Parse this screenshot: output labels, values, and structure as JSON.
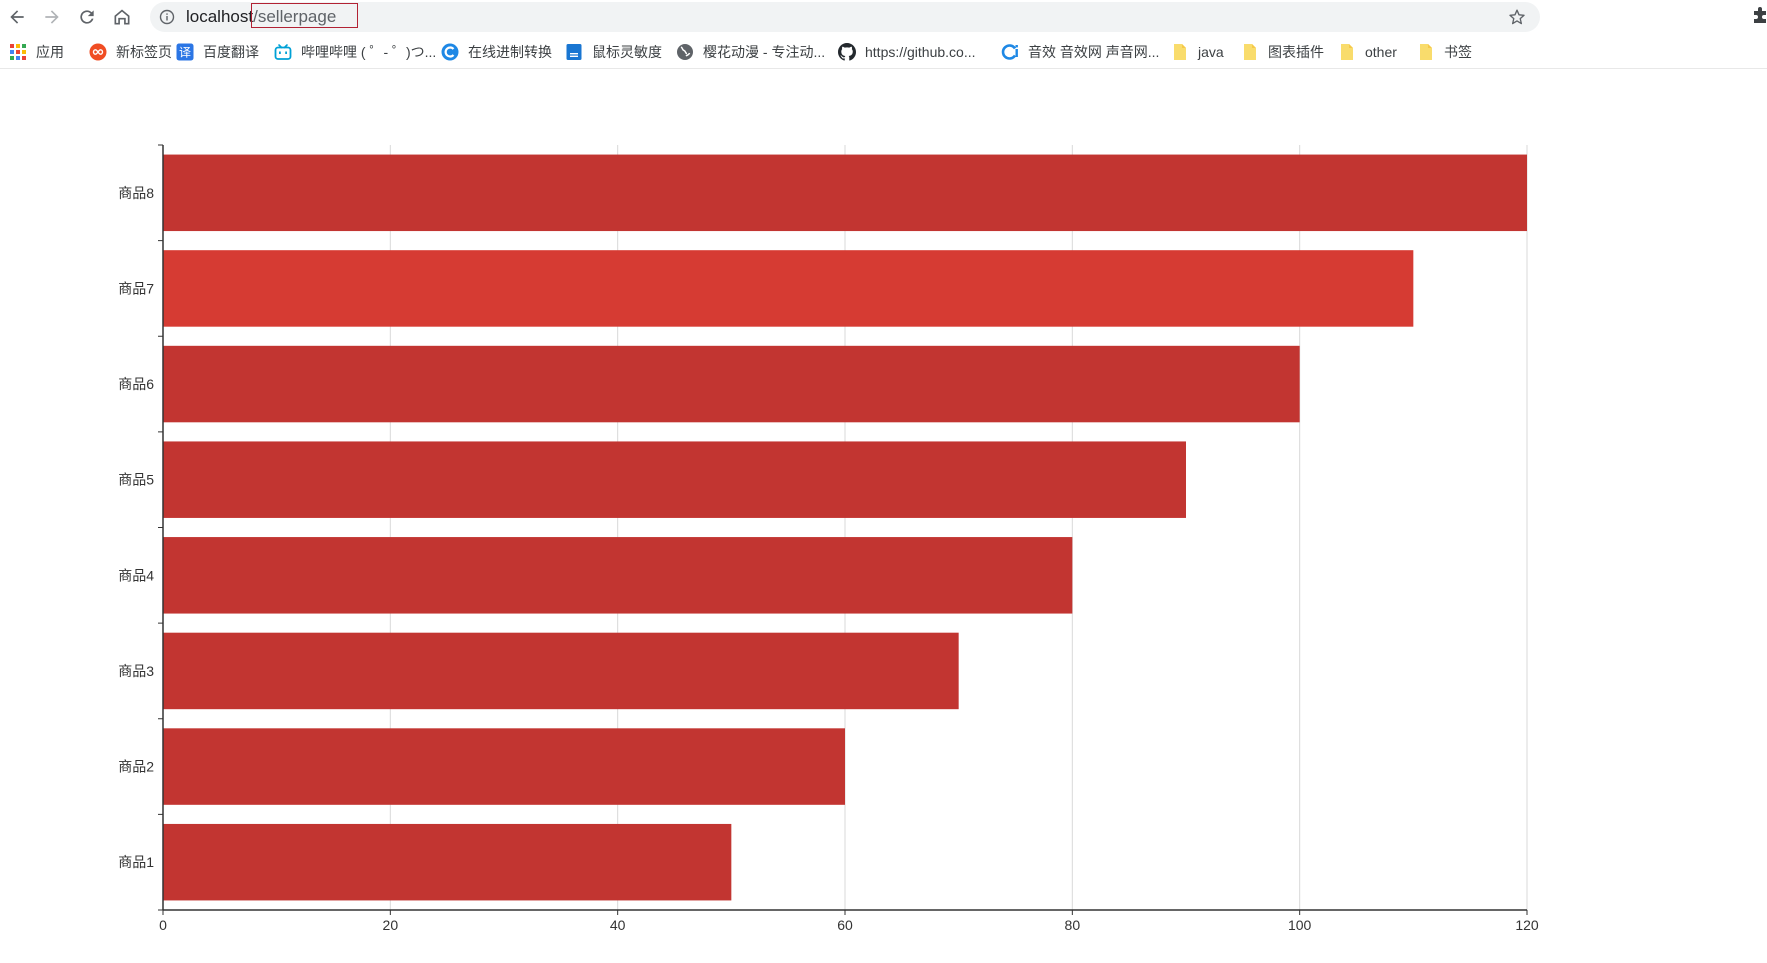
{
  "browser": {
    "url_host": "localhost",
    "url_path": "/sellerpage"
  },
  "bookmarks": [
    {
      "label": "应用",
      "icon": "apps-grid-icon"
    },
    {
      "label": "新标签页",
      "icon": "infinity-icon"
    },
    {
      "label": "百度翻译",
      "icon": "translate-icon"
    },
    {
      "label": "哔哩哔哩 ( ゜- ゜)つ...",
      "icon": "bilibili-icon"
    },
    {
      "label": "在线进制转换",
      "icon": "converter-icon"
    },
    {
      "label": "鼠标灵敏度",
      "icon": "document-icon"
    },
    {
      "label": "樱花动漫 - 专注动...",
      "icon": "globe-icon"
    },
    {
      "label": "https://github.co...",
      "icon": "github-icon"
    },
    {
      "label": "音效 音效网 声音网...",
      "icon": "sound-site-icon"
    },
    {
      "label": "java",
      "icon": "folder-icon"
    },
    {
      "label": "图表插件",
      "icon": "folder-icon"
    },
    {
      "label": "other",
      "icon": "folder-icon"
    },
    {
      "label": "书签",
      "icon": "folder-icon"
    }
  ],
  "colors": {
    "bar": "#c23531",
    "bar_highlight": "#d63b33",
    "grid": "#d9d9d9",
    "axis": "#333333",
    "folder": "#f9dc6c",
    "url_highlight_border": "#b22234"
  },
  "chart_data": {
    "type": "bar",
    "orientation": "horizontal",
    "categories": [
      "商品1",
      "商品2",
      "商品3",
      "商品4",
      "商品5",
      "商品6",
      "商品7",
      "商品8"
    ],
    "values": [
      50,
      60,
      70,
      80,
      90,
      100,
      110,
      120
    ],
    "highlighted_category": "商品7",
    "xlim": [
      0,
      120
    ],
    "x_ticks": [
      0,
      20,
      40,
      60,
      80,
      100,
      120
    ],
    "grid": true,
    "title": "",
    "xlabel": "",
    "ylabel": ""
  }
}
